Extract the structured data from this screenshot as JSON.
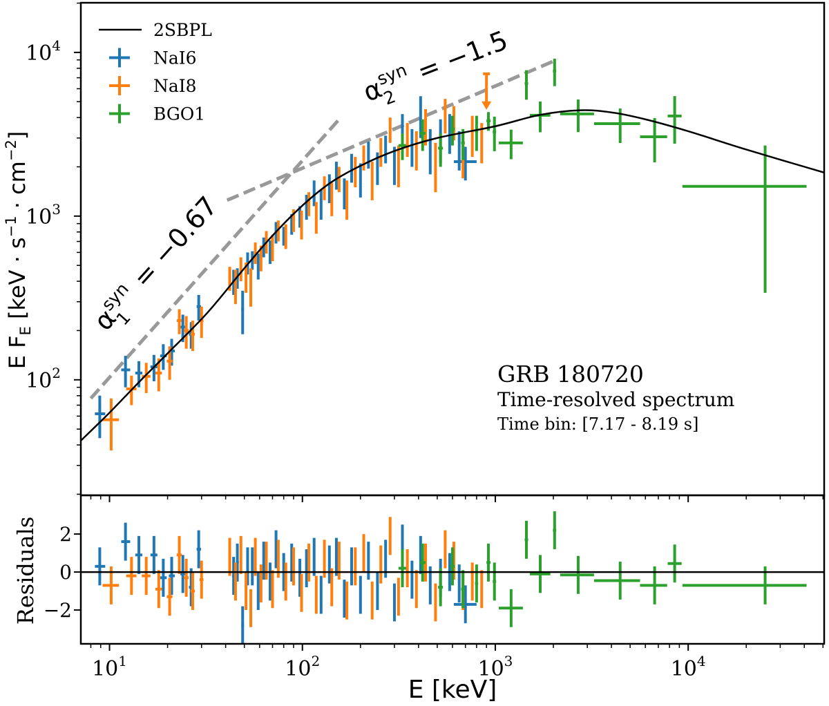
{
  "chart_data": [
    {
      "type": "scatter",
      "panel": "spectrum",
      "xscale": "log",
      "yscale": "log",
      "xlim": [
        7.1,
        50700
      ],
      "ylim": [
        19.7,
        20100
      ],
      "xlabel": "E [keV]",
      "ylabel_parts": {
        "main": "E F",
        "sub": "E",
        "unit_a": "  [keV · s",
        "exp_a": "−1",
        "unit_b": " · cm",
        "exp_b": "−2",
        "close": "]"
      },
      "yticks": [
        {
          "base": "10",
          "exp": "2",
          "value": 100
        },
        {
          "base": "10",
          "exp": "3",
          "value": 1000
        },
        {
          "base": "10",
          "exp": "4",
          "value": 10000
        }
      ],
      "grid": false,
      "legend_placement": "top-left",
      "legend": [
        {
          "label": "2SBPL",
          "kind": "line",
          "color": "#000000"
        },
        {
          "label": "NaI6",
          "kind": "errorbar",
          "color": "#1f77b4"
        },
        {
          "label": "NaI8",
          "kind": "errorbar",
          "color": "#ff7f0e"
        },
        {
          "label": "BGO1",
          "kind": "errorbar",
          "color": "#2ca02c"
        }
      ],
      "model": {
        "name": "2SBPL",
        "color": "#000000",
        "points": [
          [
            7.1,
            42.5
          ],
          [
            10,
            63
          ],
          [
            14,
            95
          ],
          [
            20,
            145
          ],
          [
            32,
            255
          ],
          [
            50,
            480
          ],
          [
            70,
            760
          ],
          [
            100,
            1160
          ],
          [
            140,
            1600
          ],
          [
            200,
            2030
          ],
          [
            300,
            2500
          ],
          [
            500,
            3000
          ],
          [
            1000,
            3540
          ],
          [
            1700,
            4150
          ],
          [
            2750,
            4430
          ],
          [
            4000,
            4300
          ],
          [
            6000,
            3900
          ],
          [
            10000,
            3300
          ],
          [
            20000,
            2550
          ],
          [
            50700,
            1845
          ]
        ]
      },
      "guides": [
        {
          "label_base": "α",
          "label_sub": "1",
          "label_sup": "syn",
          "label_value": " = −0.67",
          "color": "#999999",
          "from": [
            8,
            77
          ],
          "to": [
            155,
            3900
          ]
        },
        {
          "label_base": "α",
          "label_sub": "2",
          "label_sup": "syn",
          "label_value": " = −1.5",
          "color": "#999999",
          "from": [
            40.7,
            1250
          ],
          "to": [
            2080,
            9000
          ]
        }
      ],
      "annotations": {
        "title": "GRB 180720",
        "subtitle": "Time-resolved spectrum",
        "time_bin": "Time bin: [7.17 - 8.19 s]"
      },
      "series_format": "[E, E_low, E_high, EF_E, EF_E_err, residual]",
      "series": [
        {
          "name": "NaI6",
          "color": "#1f77b4",
          "points": [
            [
              8.9,
              8.4,
              9.5,
              62,
              18,
              0.3
            ],
            [
              12.1,
              11.5,
              12.8,
              115,
              25,
              1.6
            ],
            [
              14.2,
              13.6,
              14.8,
              110,
              20,
              0.9
            ],
            [
              17,
              16.3,
              17.7,
              120,
              22,
              0.9
            ],
            [
              19,
              18.3,
              19.8,
              140,
              25,
              -0.3
            ],
            [
              21,
              20.3,
              21.8,
              150,
              28,
              -0.2
            ],
            [
              24,
              23.3,
              24.8,
              210,
              40,
              -0.1
            ],
            [
              26.5,
              25.8,
              27.2,
              190,
              35,
              -0.8
            ],
            [
              29,
              28.3,
              29.8,
              280,
              50,
              1.2
            ],
            [
              44,
              43.2,
              44.8,
              400,
              70,
              -0.2
            ],
            [
              46,
              45.2,
              46.8,
              420,
              60,
              0.5
            ],
            [
              49,
              48.2,
              49.8,
              270,
              80,
              -2.8
            ],
            [
              52,
              51.2,
              52.8,
              520,
              80,
              0.3
            ],
            [
              55,
              54.2,
              55.8,
              540,
              70,
              0.3
            ],
            [
              59,
              58.2,
              59.8,
              500,
              90,
              -1.0
            ],
            [
              63,
              62.2,
              63.8,
              650,
              90,
              0.6
            ],
            [
              68,
              67.2,
              68.8,
              610,
              100,
              -0.5
            ],
            [
              73,
              72.2,
              73.8,
              800,
              120,
              1.2
            ],
            [
              80,
              79.2,
              80.8,
              760,
              100,
              0
            ],
            [
              88,
              87.2,
              88.8,
              900,
              130,
              0.5
            ],
            [
              97,
              96.2,
              97.8,
              1000,
              150,
              -0.3
            ],
            [
              105,
              104,
              106,
              1150,
              200,
              0.2
            ],
            [
              115,
              114,
              116,
              1400,
              250,
              0.8
            ],
            [
              125,
              124,
              126,
              1200,
              250,
              -1.2
            ],
            [
              138,
              137,
              139,
              1500,
              300,
              0.4
            ],
            [
              150,
              149,
              151,
              1800,
              350,
              0.8
            ],
            [
              165,
              164,
              166,
              1400,
              300,
              -1.4
            ],
            [
              180,
              179,
              181,
              2000,
              400,
              0.3
            ],
            [
              200,
              198,
              202,
              1700,
              400,
              -1.2
            ],
            [
              220,
              218,
              222,
              2400,
              450,
              0.6
            ],
            [
              245,
              243,
              247,
              2000,
              450,
              -1.0
            ],
            [
              270,
              268,
              272,
              2600,
              500,
              0.7
            ],
            [
              300,
              298,
              302,
              2100,
              550,
              -1.6
            ],
            [
              330,
              328,
              332,
              3500,
              700,
              1.5
            ],
            [
              370,
              367,
              373,
              2700,
              700,
              -0.4
            ],
            [
              410,
              407,
              413,
              4200,
              1200,
              0.9
            ],
            [
              460,
              456,
              464,
              2600,
              800,
              -0.7
            ],
            [
              520,
              515,
              525,
              3000,
              900,
              -0.3
            ],
            [
              580,
              575,
              585,
              3300,
              900,
              0
            ],
            [
              650,
              644,
              656,
              2600,
              700,
              -0.6
            ],
            [
              700,
              610,
              800,
              2150,
              500,
              -1.7
            ]
          ]
        },
        {
          "name": "NaI8",
          "color": "#ff7f0e",
          "upper_limits": [
            [
              900,
              7400
            ]
          ],
          "points": [
            [
              10.2,
              9.2,
              11.2,
              57,
              20,
              -0.7
            ],
            [
              13,
              12.2,
              13.8,
              88,
              18,
              -0.2
            ],
            [
              15.5,
              14.7,
              16.3,
              105,
              22,
              -0.2
            ],
            [
              18,
              17.3,
              18.7,
              110,
              25,
              -0.9
            ],
            [
              20.5,
              19.8,
              21.2,
              130,
              30,
              -1.3
            ],
            [
              23,
              22.3,
              23.7,
              230,
              40,
              0.9
            ],
            [
              25,
              24.3,
              25.7,
              200,
              45,
              -0.3
            ],
            [
              27,
              26.3,
              27.7,
              190,
              40,
              -1.0
            ],
            [
              30,
              29.3,
              30.7,
              230,
              50,
              -0.4
            ],
            [
              42,
              41.3,
              42.7,
              420,
              70,
              0.8
            ],
            [
              45,
              44.3,
              45.7,
              380,
              90,
              -0.5
            ],
            [
              48,
              47.3,
              48.7,
              480,
              80,
              0.9
            ],
            [
              51,
              50.3,
              51.7,
              430,
              90,
              -1.0
            ],
            [
              54,
              53.3,
              54.7,
              380,
              100,
              -1.9
            ],
            [
              57,
              56.3,
              57.7,
              600,
              90,
              0.8
            ],
            [
              61,
              60.3,
              61.7,
              560,
              100,
              -0.6
            ],
            [
              65,
              64.3,
              65.7,
              700,
              110,
              0.6
            ],
            [
              70,
              69.3,
              70.7,
              650,
              120,
              -0.9
            ],
            [
              75,
              74.3,
              75.7,
              820,
              120,
              0.7
            ],
            [
              82,
              81,
              83,
              760,
              130,
              -0.5
            ],
            [
              90,
              89,
              91,
              950,
              150,
              0.3
            ],
            [
              99,
              98,
              100,
              900,
              180,
              -1.1
            ],
            [
              108,
              107,
              109,
              1200,
              200,
              0.5
            ],
            [
              118,
              117,
              119,
              1000,
              220,
              -1.2
            ],
            [
              130,
              129,
              131,
              1500,
              250,
              0.7
            ],
            [
              142,
              141,
              143,
              1300,
              300,
              -0.8
            ],
            [
              155,
              154,
              156,
              1700,
              300,
              0.6
            ],
            [
              170,
              169,
              171,
              1300,
              350,
              -1.5
            ],
            [
              188,
              186,
              190,
              1900,
              400,
              0.3
            ],
            [
              208,
              206,
              210,
              2300,
              400,
              1.0
            ],
            [
              230,
              228,
              232,
              1700,
              450,
              -1.5
            ],
            [
              255,
              253,
              257,
              2500,
              500,
              0.4
            ],
            [
              285,
              283,
              287,
              3400,
              600,
              1.9
            ],
            [
              315,
              313,
              317,
              2100,
              600,
              -1.3
            ],
            [
              350,
              347,
              353,
              3000,
              700,
              0.2
            ],
            [
              390,
              387,
              393,
              2600,
              700,
              -0.9
            ],
            [
              435,
              431,
              439,
              3600,
              900,
              0.5
            ],
            [
              490,
              485,
              495,
              2100,
              700,
              -1.6
            ],
            [
              550,
              545,
              555,
              4200,
              1000,
              1.2
            ],
            [
              610,
              604,
              616,
              3800,
              900,
              0.6
            ],
            [
              680,
              673,
              687,
              2500,
              800,
              -1.0
            ],
            [
              760,
              752,
              768,
              3200,
              900,
              -0.5
            ],
            [
              850,
              841,
              859,
              2900,
              800,
              -0.9
            ]
          ]
        },
        {
          "name": "BGO1",
          "color": "#2ca02c",
          "points": [
            [
              330,
              315,
              345,
              2700,
              500,
              0.2
            ],
            [
              420,
              405,
              435,
              3200,
              700,
              0.5
            ],
            [
              520,
              505,
              535,
              2600,
              600,
              -0.8
            ],
            [
              600,
              585,
              615,
              3400,
              700,
              0.3
            ],
            [
              680,
              665,
              695,
              2800,
              600,
              -0.9
            ],
            [
              800,
              785,
              815,
              3300,
              800,
              -0.6
            ],
            [
              921,
              900,
              945,
              3820,
              500,
              0.5
            ],
            [
              990,
              970,
              1010,
              3270,
              780,
              -0.5
            ],
            [
              1208,
              1042,
              1390,
              2800,
              575,
              -1.9
            ],
            [
              1450,
              1420,
              1480,
              6460,
              1320,
              1.7
            ],
            [
              1710,
              1510,
              1930,
              4130,
              880,
              -0.1
            ],
            [
              2030,
              1990,
              2070,
              7690,
              1470,
              2.2
            ],
            [
              2690,
              2170,
              3250,
              4210,
              950,
              -0.15
            ],
            [
              4440,
              3250,
              5630,
              3670,
              875,
              -0.45
            ],
            [
              6700,
              5630,
              7780,
              3050,
              920,
              -0.7
            ],
            [
              8510,
              7830,
              9250,
              4090,
              1320,
              0.45
            ],
            [
              25060,
              9330,
              41100,
              1520,
              1180,
              -0.7
            ]
          ]
        }
      ]
    },
    {
      "type": "scatter",
      "panel": "residuals",
      "xscale": "log",
      "xlim": [
        7.1,
        50700
      ],
      "ylim": [
        -3.78,
        4.04
      ],
      "ylabel": "Residuals",
      "xlabel": "E [keV]",
      "xticks": [
        {
          "base": "10",
          "exp": "1",
          "value": 10
        },
        {
          "base": "10",
          "exp": "2",
          "value": 100
        },
        {
          "base": "10",
          "exp": "3",
          "value": 1000
        },
        {
          "base": "10",
          "exp": "4",
          "value": 10000
        }
      ],
      "yticks": [
        {
          "label": "2",
          "value": 2
        },
        {
          "label": "0",
          "value": 0
        },
        {
          "label": "−2",
          "value": -2
        }
      ],
      "reference_line": 0,
      "residual_error": 1
    }
  ]
}
